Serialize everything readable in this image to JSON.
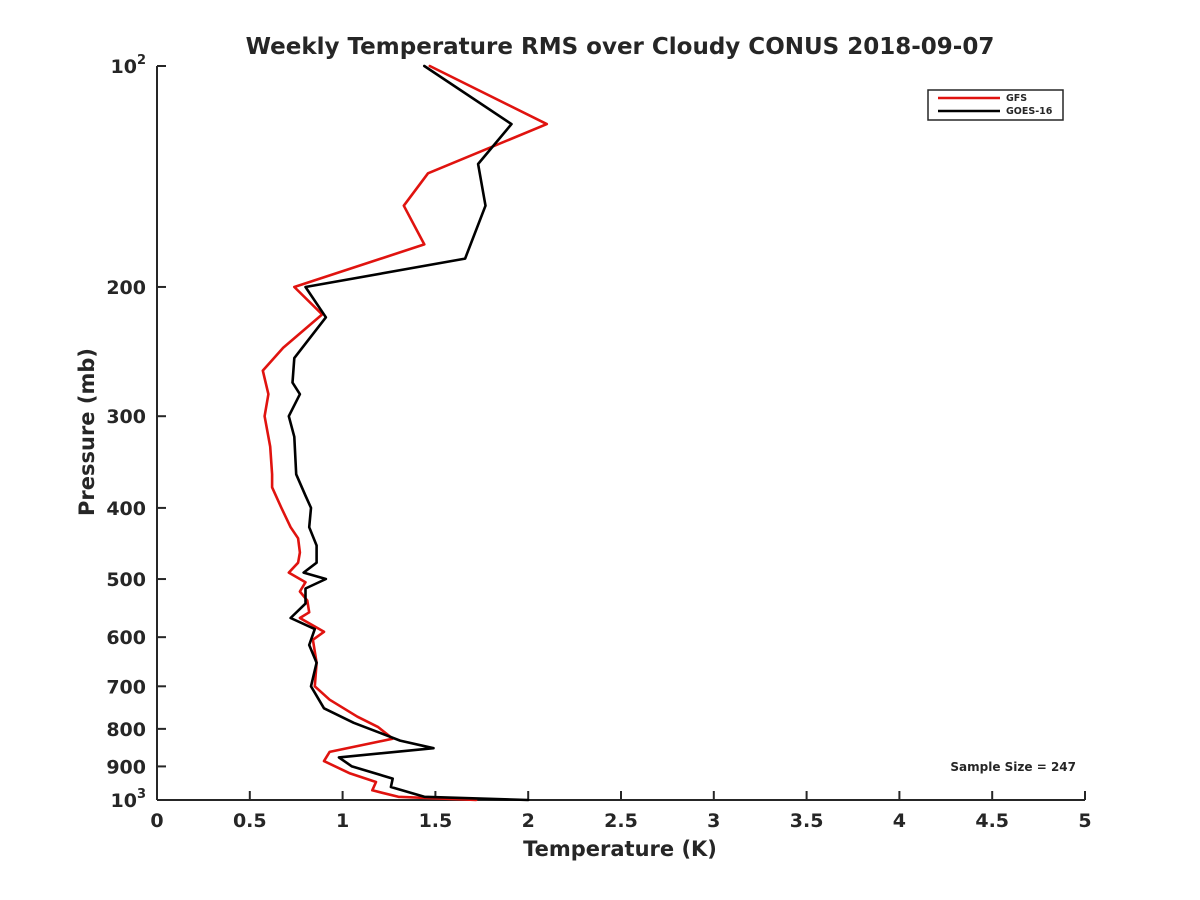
{
  "chart_data": {
    "type": "line",
    "title": "Weekly Temperature RMS over Cloudy CONUS 2018-09-07",
    "xlabel": "Temperature (K)",
    "ylabel": "Pressure (mb)",
    "xlim": [
      0,
      5
    ],
    "ylim": [
      100,
      1000
    ],
    "y_scale": "log",
    "y_reversed": true,
    "grid": false,
    "x_ticks": [
      0,
      0.5,
      1,
      1.5,
      2,
      2.5,
      3,
      3.5,
      4,
      4.5,
      5
    ],
    "x_tick_labels": [
      "0",
      "0.5",
      "1",
      "1.5",
      "2",
      "2.5",
      "3",
      "3.5",
      "4",
      "4.5",
      "5"
    ],
    "y_ticks": [
      {
        "value": 100,
        "base": "10",
        "exp": "2"
      },
      {
        "value": 200,
        "label": "200"
      },
      {
        "value": 300,
        "label": "300"
      },
      {
        "value": 400,
        "label": "400"
      },
      {
        "value": 500,
        "label": "500"
      },
      {
        "value": 600,
        "label": "600"
      },
      {
        "value": 700,
        "label": "700"
      },
      {
        "value": 800,
        "label": "800"
      },
      {
        "value": 900,
        "label": "900"
      },
      {
        "value": 1000,
        "base": "10",
        "exp": "3"
      }
    ],
    "legend_position": "top-right",
    "annotation": "Sample Size = 247",
    "series": [
      {
        "name": "GFS",
        "color": "#e0130f",
        "points": [
          [
            1.47,
            100
          ],
          [
            2.1,
            120
          ],
          [
            1.46,
            140
          ],
          [
            1.33,
            155
          ],
          [
            1.44,
            175
          ],
          [
            0.74,
            200
          ],
          [
            0.89,
            218
          ],
          [
            0.68,
            242
          ],
          [
            0.57,
            260
          ],
          [
            0.6,
            280
          ],
          [
            0.58,
            300
          ],
          [
            0.61,
            330
          ],
          [
            0.62,
            360
          ],
          [
            0.62,
            375
          ],
          [
            0.67,
            400
          ],
          [
            0.72,
            425
          ],
          [
            0.76,
            440
          ],
          [
            0.77,
            460
          ],
          [
            0.76,
            475
          ],
          [
            0.71,
            490
          ],
          [
            0.8,
            505
          ],
          [
            0.77,
            520
          ],
          [
            0.81,
            535
          ],
          [
            0.82,
            555
          ],
          [
            0.77,
            565
          ],
          [
            0.9,
            590
          ],
          [
            0.84,
            605
          ],
          [
            0.86,
            650
          ],
          [
            0.85,
            700
          ],
          [
            0.93,
            730
          ],
          [
            1.08,
            770
          ],
          [
            1.19,
            795
          ],
          [
            1.27,
            825
          ],
          [
            0.93,
            860
          ],
          [
            0.9,
            885
          ],
          [
            1.04,
            920
          ],
          [
            1.18,
            945
          ],
          [
            1.16,
            970
          ],
          [
            1.3,
            990
          ],
          [
            1.72,
            1000
          ]
        ]
      },
      {
        "name": "GOES-16",
        "color": "#000000",
        "points": [
          [
            1.44,
            100
          ],
          [
            1.91,
            120
          ],
          [
            1.73,
            136
          ],
          [
            1.77,
            155
          ],
          [
            1.66,
            183
          ],
          [
            0.8,
            200
          ],
          [
            0.91,
            220
          ],
          [
            0.74,
            250
          ],
          [
            0.73,
            270
          ],
          [
            0.77,
            280
          ],
          [
            0.71,
            300
          ],
          [
            0.74,
            320
          ],
          [
            0.75,
            360
          ],
          [
            0.8,
            385
          ],
          [
            0.83,
            400
          ],
          [
            0.82,
            425
          ],
          [
            0.86,
            450
          ],
          [
            0.86,
            475
          ],
          [
            0.79,
            490
          ],
          [
            0.91,
            500
          ],
          [
            0.8,
            515
          ],
          [
            0.8,
            540
          ],
          [
            0.72,
            565
          ],
          [
            0.85,
            585
          ],
          [
            0.82,
            615
          ],
          [
            0.86,
            650
          ],
          [
            0.83,
            700
          ],
          [
            0.9,
            750
          ],
          [
            1.06,
            785
          ],
          [
            1.31,
            830
          ],
          [
            1.49,
            850
          ],
          [
            0.98,
            875
          ],
          [
            1.05,
            900
          ],
          [
            1.27,
            935
          ],
          [
            1.26,
            960
          ],
          [
            1.44,
            990
          ],
          [
            2.0,
            1000
          ]
        ]
      }
    ]
  }
}
